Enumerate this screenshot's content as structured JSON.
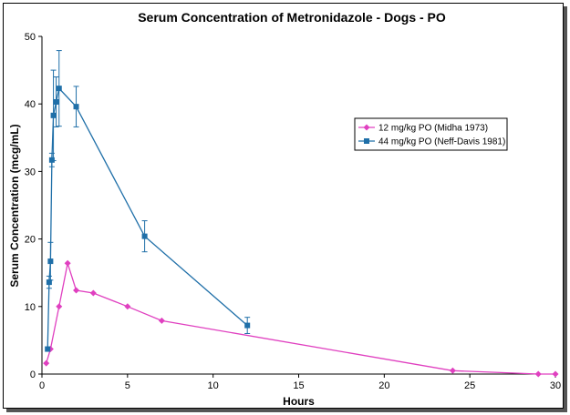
{
  "chart_data": {
    "type": "line",
    "title": "Serum Concentration of Metronidazole - Dogs - PO",
    "xlabel": "Hours",
    "ylabel": "Serum Concentration (mcg/mL)",
    "xlim": [
      0,
      30
    ],
    "ylim": [
      0,
      50
    ],
    "xticks": [
      0,
      5,
      10,
      15,
      20,
      25,
      30
    ],
    "yticks": [
      0,
      10,
      20,
      30,
      40,
      50
    ],
    "grid": false,
    "legend_position": "right",
    "series": [
      {
        "name": "12 mg/kg PO (Midha 1973)",
        "color": "#e040c0",
        "marker": "diamond",
        "x": [
          0.25,
          0.5,
          1,
          1.5,
          2,
          3,
          5,
          7,
          24,
          29,
          30
        ],
        "y": [
          1.6,
          3.7,
          10,
          16.4,
          12.4,
          12,
          10,
          7.9,
          0.5,
          0,
          0
        ]
      },
      {
        "name": "44 mg/kg PO (Neff-Davis 1981)",
        "color": "#1f6fa8",
        "marker": "square",
        "x": [
          0.33,
          0.42,
          0.5,
          0.58,
          0.67,
          0.83,
          1,
          2,
          6,
          12
        ],
        "y": [
          3.7,
          13.6,
          16.7,
          31.7,
          38.3,
          40.3,
          42.3,
          39.6,
          20.4,
          7.2
        ],
        "err": [
          0,
          0.9,
          2.8,
          1.0,
          6.7,
          3.7,
          5.6,
          3.0,
          2.3,
          1.2
        ]
      }
    ]
  }
}
